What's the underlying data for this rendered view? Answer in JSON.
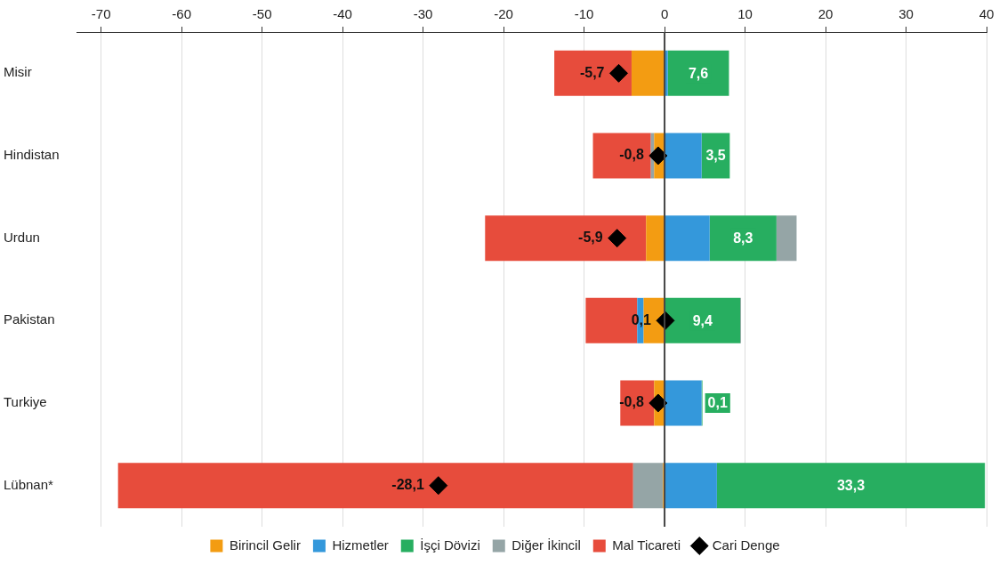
{
  "chart_data": {
    "type": "bar",
    "orientation": "horizontal",
    "stacked": true,
    "categories": [
      "Misir",
      "Hindistan",
      "Urdun",
      "Pakistan",
      "Turkiye",
      "Lübnan*"
    ],
    "xlim": [
      -73,
      40
    ],
    "xticks": [
      -70,
      -60,
      -50,
      -40,
      -30,
      -20,
      -10,
      0,
      10,
      20,
      30,
      40
    ],
    "grid": "x",
    "legend": "bottom",
    "ref_lines": [
      {
        "axis": "x",
        "value": 0,
        "color": "#444444"
      }
    ],
    "series": [
      {
        "name": "Birincil Gelir",
        "color": "#f39c12",
        "values": [
          -4.1,
          -1.3,
          -2.3,
          -2.6,
          -1.3,
          -0.2
        ]
      },
      {
        "name": "Hizmetler",
        "color": "#3498db",
        "values": [
          0.4,
          4.6,
          5.6,
          -0.8,
          4.6,
          6.5
        ]
      },
      {
        "name": "İşçi Dövizi",
        "color": "#27ae60",
        "values": [
          7.6,
          3.5,
          8.3,
          9.4,
          0.1,
          33.3
        ],
        "value_labels": [
          "7,6",
          "3,5",
          "8,3",
          "9,4",
          "0,1",
          "33,3"
        ]
      },
      {
        "name": "Diğer İkincil",
        "color": "#95a5a6",
        "values": [
          null,
          -0.4,
          2.5,
          0.1,
          null,
          -3.7
        ]
      },
      {
        "name": "Mal Ticareti",
        "color": "#e74c3c",
        "values": [
          -9.6,
          -7.2,
          -20.0,
          -6.4,
          -4.2,
          -64.0
        ]
      },
      {
        "name": "Cari Denge",
        "type": "scatter",
        "marker": "diamond",
        "color": "#000000",
        "values": [
          -5.7,
          -0.8,
          -5.9,
          0.1,
          -0.8,
          -28.1
        ],
        "value_labels": [
          "-5,7",
          "-0,8",
          "-5,9",
          "0,1",
          "-0,8",
          "-28,1"
        ]
      }
    ]
  }
}
